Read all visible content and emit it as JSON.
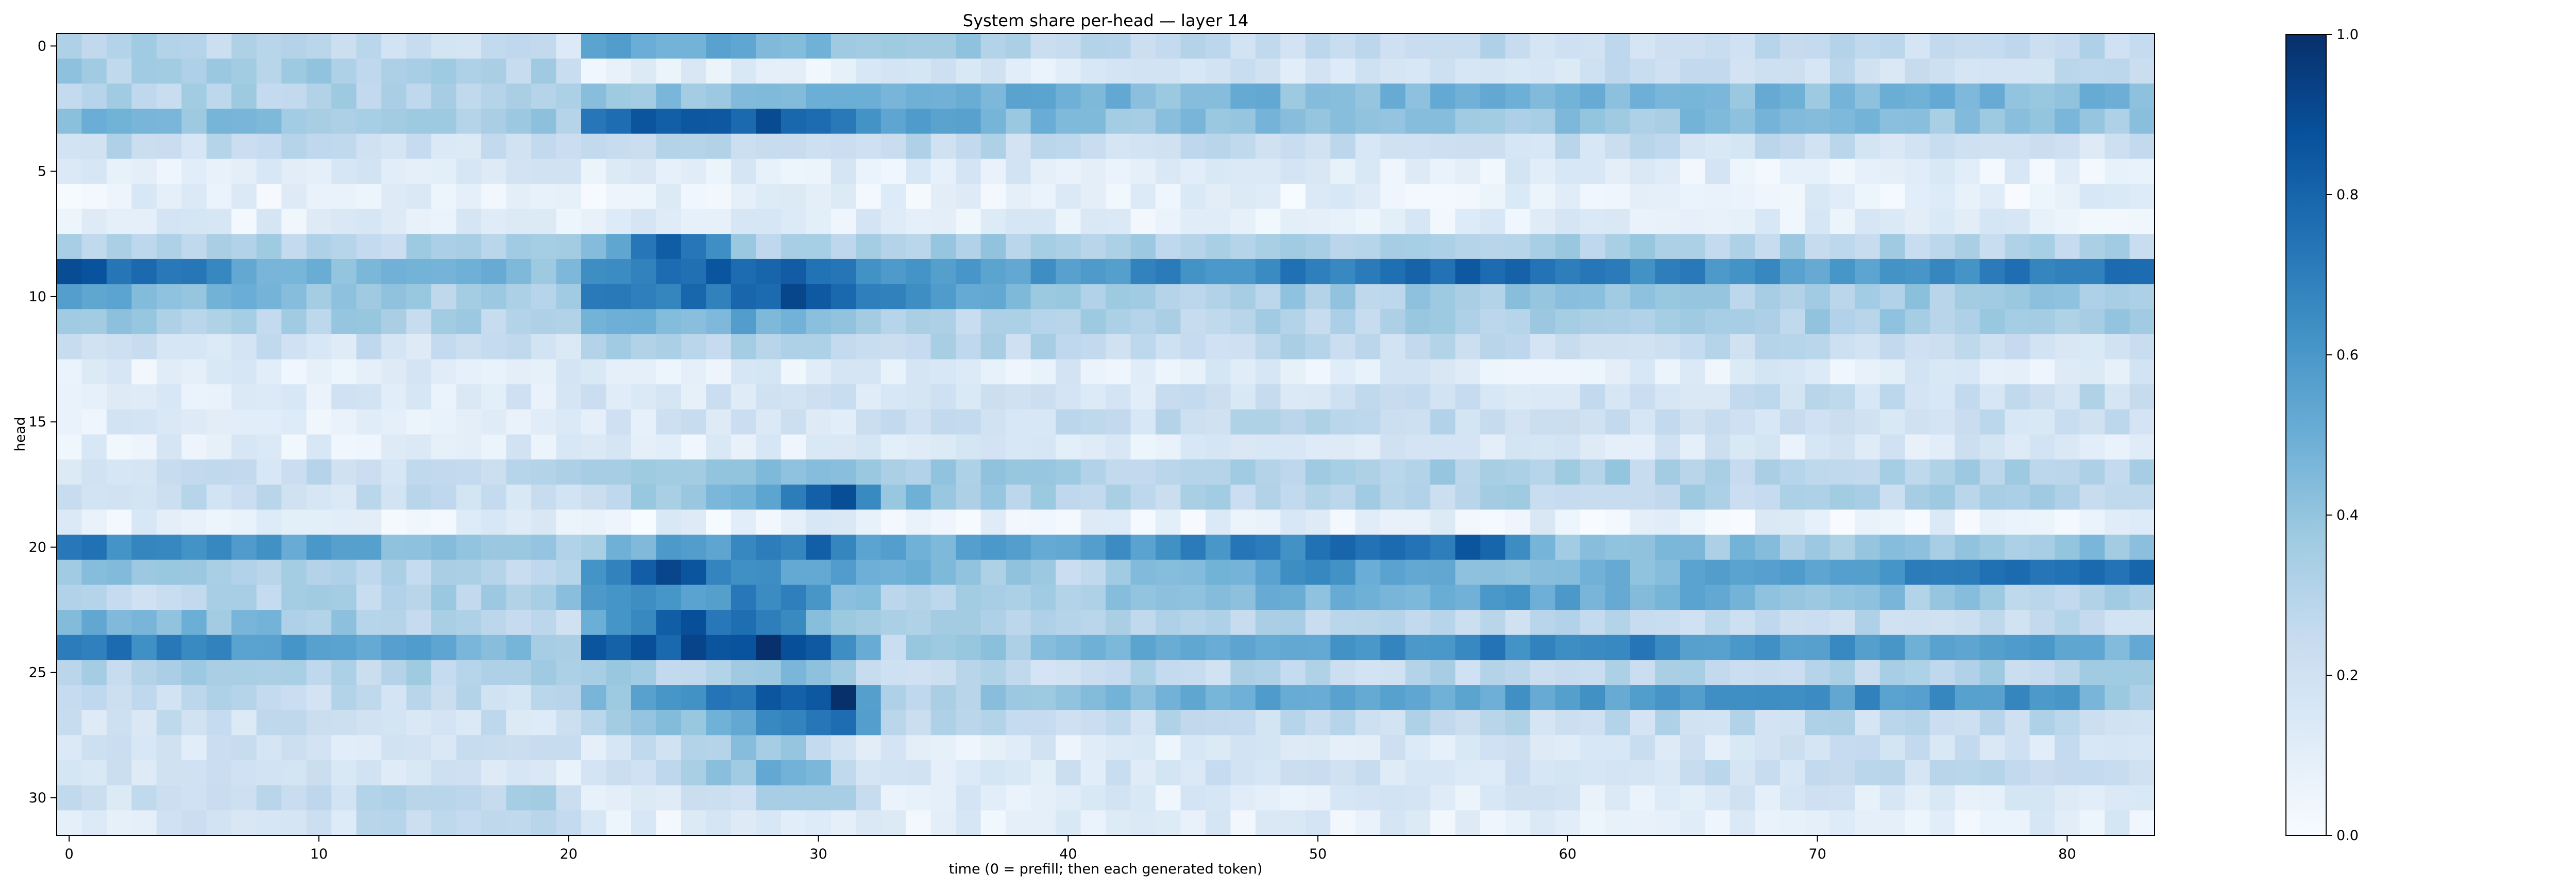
{
  "chart_data": {
    "type": "heatmap",
    "title": "System share per-head — layer 14",
    "xlabel": "time (0 = prefill; then each generated token)",
    "ylabel": "head",
    "n_rows": 32,
    "n_cols": 84,
    "x_ticks": [
      0,
      10,
      20,
      30,
      40,
      50,
      60,
      70,
      80
    ],
    "y_ticks": [
      0,
      5,
      10,
      15,
      20,
      25,
      30
    ],
    "color_scale": {
      "name": "Blues",
      "min": 0.0,
      "max": 1.0,
      "ticks": [
        0.0,
        0.2,
        0.4,
        0.6,
        0.8,
        1.0
      ],
      "stops": [
        "#f7fbff",
        "#deebf7",
        "#c6dbef",
        "#9ecae1",
        "#6baed6",
        "#4292c6",
        "#2171b5",
        "#08519c",
        "#08306b"
      ]
    },
    "row_profiles": [
      [
        [
          0,
          0.3
        ],
        [
          20,
          0.2
        ],
        [
          21,
          0.55
        ],
        [
          33,
          0.4
        ],
        [
          40,
          0.25
        ],
        [
          83,
          0.25
        ]
      ],
      [
        [
          0,
          0.35
        ],
        [
          20,
          0.3
        ],
        [
          21,
          0.08
        ],
        [
          40,
          0.15
        ],
        [
          83,
          0.25
        ]
      ],
      [
        [
          0,
          0.3
        ],
        [
          20,
          0.3
        ],
        [
          21,
          0.4
        ],
        [
          34,
          0.5
        ],
        [
          45,
          0.45
        ],
        [
          60,
          0.45
        ],
        [
          83,
          0.45
        ]
      ],
      [
        [
          0,
          0.45
        ],
        [
          20,
          0.35
        ],
        [
          21,
          0.8
        ],
        [
          28,
          0.85
        ],
        [
          33,
          0.6
        ],
        [
          40,
          0.4
        ],
        [
          83,
          0.4
        ]
      ],
      [
        [
          0,
          0.25
        ],
        [
          20,
          0.2
        ],
        [
          21,
          0.3
        ],
        [
          40,
          0.25
        ],
        [
          83,
          0.2
        ]
      ],
      [
        [
          0,
          0.1
        ],
        [
          20,
          0.12
        ],
        [
          21,
          0.12
        ],
        [
          83,
          0.1
        ]
      ],
      [
        [
          0,
          0.08
        ],
        [
          83,
          0.08
        ]
      ],
      [
        [
          0,
          0.1
        ],
        [
          83,
          0.1
        ]
      ],
      [
        [
          0,
          0.3
        ],
        [
          20,
          0.3
        ],
        [
          21,
          0.4
        ],
        [
          24,
          0.8
        ],
        [
          28,
          0.35
        ],
        [
          40,
          0.35
        ],
        [
          83,
          0.3
        ]
      ],
      [
        [
          0,
          0.9
        ],
        [
          10,
          0.45
        ],
        [
          20,
          0.45
        ],
        [
          21,
          0.7
        ],
        [
          29,
          0.9
        ],
        [
          33,
          0.55
        ],
        [
          50,
          0.7
        ],
        [
          58,
          0.8
        ],
        [
          70,
          0.55
        ],
        [
          83,
          0.8
        ]
      ],
      [
        [
          0,
          0.5
        ],
        [
          20,
          0.3
        ],
        [
          21,
          0.75
        ],
        [
          28,
          0.75
        ],
        [
          29,
          0.85
        ],
        [
          33,
          0.75
        ],
        [
          40,
          0.35
        ],
        [
          83,
          0.35
        ]
      ],
      [
        [
          0,
          0.35
        ],
        [
          20,
          0.3
        ],
        [
          21,
          0.5
        ],
        [
          28,
          0.5
        ],
        [
          33,
          0.3
        ],
        [
          83,
          0.35
        ]
      ],
      [
        [
          0,
          0.2
        ],
        [
          20,
          0.2
        ],
        [
          21,
          0.3
        ],
        [
          30,
          0.3
        ],
        [
          83,
          0.2
        ]
      ],
      [
        [
          0,
          0.1
        ],
        [
          83,
          0.12
        ]
      ],
      [
        [
          0,
          0.12
        ],
        [
          20,
          0.15
        ],
        [
          21,
          0.15
        ],
        [
          83,
          0.25
        ]
      ],
      [
        [
          0,
          0.12
        ],
        [
          20,
          0.12
        ],
        [
          21,
          0.15
        ],
        [
          50,
          0.25
        ],
        [
          83,
          0.2
        ]
      ],
      [
        [
          0,
          0.1
        ],
        [
          83,
          0.15
        ]
      ],
      [
        [
          0,
          0.2
        ],
        [
          20,
          0.25
        ],
        [
          21,
          0.3
        ],
        [
          29,
          0.45
        ],
        [
          33,
          0.35
        ],
        [
          83,
          0.3
        ]
      ],
      [
        [
          0,
          0.25
        ],
        [
          20,
          0.2
        ],
        [
          21,
          0.25
        ],
        [
          29,
          0.65
        ],
        [
          31,
          0.9
        ],
        [
          33,
          0.45
        ],
        [
          40,
          0.3
        ],
        [
          83,
          0.3
        ]
      ],
      [
        [
          0,
          0.08
        ],
        [
          83,
          0.08
        ]
      ],
      [
        [
          0,
          0.7
        ],
        [
          20,
          0.35
        ],
        [
          21,
          0.4
        ],
        [
          30,
          0.75
        ],
        [
          33,
          0.5
        ],
        [
          57,
          0.8
        ],
        [
          60,
          0.4
        ],
        [
          83,
          0.4
        ]
      ],
      [
        [
          0,
          0.4
        ],
        [
          20,
          0.3
        ],
        [
          21,
          0.65
        ],
        [
          24,
          0.85
        ],
        [
          28,
          0.6
        ],
        [
          33,
          0.45
        ],
        [
          40,
          0.3
        ],
        [
          50,
          0.6
        ],
        [
          58,
          0.4
        ],
        [
          83,
          0.8
        ]
      ],
      [
        [
          0,
          0.25
        ],
        [
          20,
          0.35
        ],
        [
          21,
          0.55
        ],
        [
          29,
          0.7
        ],
        [
          33,
          0.3
        ],
        [
          52,
          0.5
        ],
        [
          57,
          0.55
        ],
        [
          83,
          0.3
        ]
      ],
      [
        [
          0,
          0.5
        ],
        [
          20,
          0.25
        ],
        [
          21,
          0.5
        ],
        [
          25,
          0.85
        ],
        [
          28,
          0.65
        ],
        [
          33,
          0.3
        ],
        [
          83,
          0.25
        ]
      ],
      [
        [
          0,
          0.75
        ],
        [
          20,
          0.4
        ],
        [
          21,
          0.8
        ],
        [
          27,
          0.9
        ],
        [
          29,
          0.95
        ],
        [
          33,
          0.3
        ],
        [
          57,
          0.7
        ],
        [
          83,
          0.5
        ]
      ],
      [
        [
          0,
          0.3
        ],
        [
          20,
          0.3
        ],
        [
          21,
          0.3
        ],
        [
          30,
          0.4
        ],
        [
          33,
          0.25
        ],
        [
          83,
          0.3
        ]
      ],
      [
        [
          0,
          0.25
        ],
        [
          20,
          0.25
        ],
        [
          21,
          0.4
        ],
        [
          31,
          0.95
        ],
        [
          33,
          0.3
        ],
        [
          50,
          0.55
        ],
        [
          70,
          0.6
        ],
        [
          80,
          0.65
        ],
        [
          83,
          0.3
        ]
      ],
      [
        [
          0,
          0.2
        ],
        [
          20,
          0.2
        ],
        [
          21,
          0.25
        ],
        [
          31,
          0.75
        ],
        [
          33,
          0.25
        ],
        [
          83,
          0.25
        ]
      ],
      [
        [
          0,
          0.15
        ],
        [
          20,
          0.2
        ],
        [
          21,
          0.12
        ],
        [
          28,
          0.4
        ],
        [
          33,
          0.1
        ],
        [
          83,
          0.2
        ]
      ],
      [
        [
          0,
          0.15
        ],
        [
          20,
          0.15
        ],
        [
          21,
          0.12
        ],
        [
          29,
          0.5
        ],
        [
          33,
          0.15
        ],
        [
          83,
          0.25
        ]
      ],
      [
        [
          0,
          0.2
        ],
        [
          20,
          0.3
        ],
        [
          21,
          0.1
        ],
        [
          30,
          0.35
        ],
        [
          33,
          0.1
        ],
        [
          83,
          0.15
        ]
      ],
      [
        [
          0,
          0.1
        ],
        [
          20,
          0.3
        ],
        [
          21,
          0.1
        ],
        [
          83,
          0.1
        ]
      ]
    ]
  }
}
